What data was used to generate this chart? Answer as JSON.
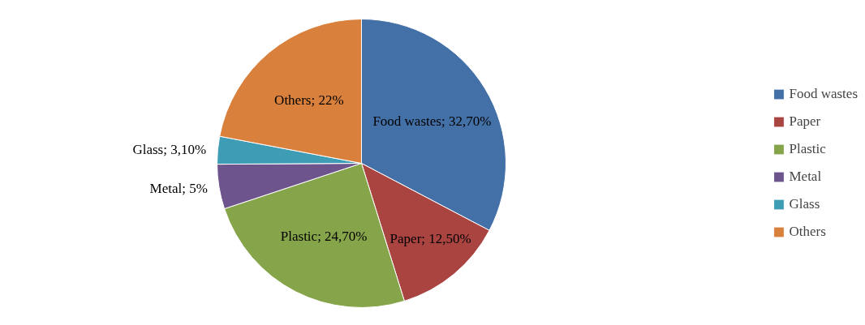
{
  "chart_data": {
    "type": "pie",
    "categories": [
      "Food wastes",
      "Paper",
      "Plastic",
      "Metal",
      "Glass",
      "Others"
    ],
    "values": [
      32.7,
      12.5,
      24.7,
      5,
      3.1,
      22
    ],
    "colors": [
      "#4470a8",
      "#a94441",
      "#86a44a",
      "#6e548d",
      "#3e9db5",
      "#d9803c"
    ],
    "value_labels": [
      "Food wastes; 32,70%",
      "Paper; 12,50%",
      "Plastic; 24,70%",
      "Metal; 5%",
      "Glass; 3,10%",
      "Others; 22%"
    ],
    "legend": "right"
  }
}
